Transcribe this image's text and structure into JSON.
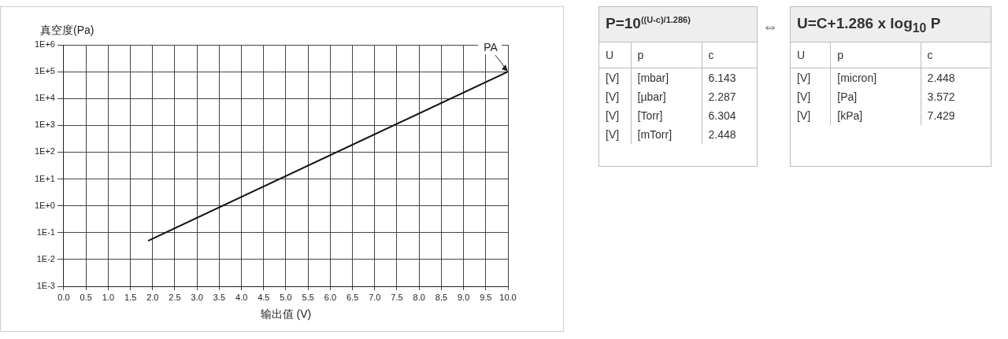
{
  "chart_data": [
    {
      "type": "line",
      "xlabel": "输出值 (V)",
      "ylabel": "真空度(Pa)",
      "log": "y",
      "grid": true,
      "marker": "none",
      "line_style": "solid",
      "series": [
        {
          "color": "#111111",
          "x": [
            1.9,
            10
          ],
          "values": [
            0.05,
            100000
          ]
        }
      ],
      "xlim": [
        0,
        10
      ],
      "xticks": [
        {
          "value": 0,
          "label": "0.0"
        },
        {
          "value": 0.5,
          "label": "0.5"
        },
        {
          "value": 1,
          "label": "1.0"
        },
        {
          "value": 1.5,
          "label": "1.5"
        },
        {
          "value": 2,
          "label": "2.0"
        },
        {
          "value": 2.5,
          "label": "2.5"
        },
        {
          "value": 3,
          "label": "3.0"
        },
        {
          "value": 3.5,
          "label": "3.5"
        },
        {
          "value": 4,
          "label": "4.0"
        },
        {
          "value": 4.5,
          "label": "4.5"
        },
        {
          "value": 5,
          "label": "5.0"
        },
        {
          "value": 5.5,
          "label": "5.5"
        },
        {
          "value": 6,
          "label": "6.0"
        },
        {
          "value": 6.5,
          "label": "6.5"
        },
        {
          "value": 7,
          "label": "7.0"
        },
        {
          "value": 7.5,
          "label": "7.5"
        },
        {
          "value": 8,
          "label": "8.0"
        },
        {
          "value": 8.5,
          "label": "8.5"
        },
        {
          "value": 9,
          "label": "9.0"
        },
        {
          "value": 9.5,
          "label": "9.5"
        },
        {
          "value": 10,
          "label": "10.0"
        }
      ],
      "ylim": [
        0.001,
        1000000
      ],
      "yticks": [
        {
          "value": 0.001,
          "label": "1E-3"
        },
        {
          "value": 0.01,
          "label": "1E-2"
        },
        {
          "value": 0.1,
          "label": "1E-1"
        },
        {
          "value": 1,
          "label": "1E+0"
        },
        {
          "value": 10,
          "label": "1E+1"
        },
        {
          "value": 100,
          "label": "1E+2"
        },
        {
          "value": 1000,
          "label": "1E+3"
        },
        {
          "value": 10000,
          "label": "1E+4"
        },
        {
          "value": 100000,
          "label": "1E+5"
        },
        {
          "value": 1000000,
          "label": "1E+6"
        }
      ],
      "annotations": [
        {
          "text": "PA",
          "x": 10,
          "y": 100000
        }
      ]
    },
    {
      "type": "other",
      "title": "P=10$^{((U-c)/1.286)}$",
      "annotations": [
        "U",
        "p",
        "c",
        "[V]",
        "[mbar]",
        "6.143",
        "[V]",
        "[µbar]",
        "2.287",
        "[V]",
        "[Torr]",
        "6.304",
        "[V]",
        "[mTorr]",
        "2.448"
      ]
    },
    {
      "type": "other",
      "title": "U=C+1.286 x log$_{10}$ P",
      "subtitle": "⇔",
      "annotations": [
        "U",
        "p",
        "c",
        "[V]",
        "[micron]",
        "2.448",
        "[V]",
        "[Pa]",
        "3.572",
        "[V]",
        "[kPa]",
        "7.429"
      ]
    }
  ]
}
